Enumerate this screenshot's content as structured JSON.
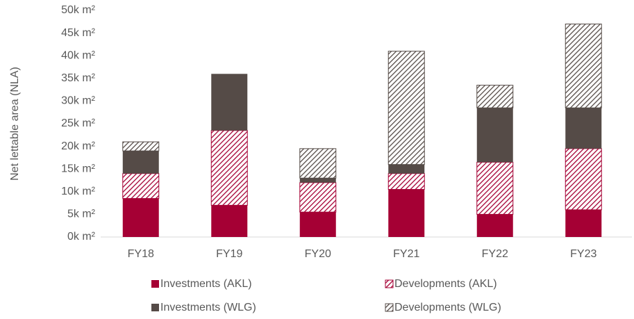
{
  "chart_data": {
    "type": "bar",
    "stacked": true,
    "y_label": "Net lettable area (NLA)",
    "categories": [
      "FY18",
      "FY19",
      "FY20",
      "FY21",
      "FY22",
      "FY23"
    ],
    "series": [
      {
        "name": "Investments (AKL)",
        "color": "#a50034",
        "hatch": false,
        "values": [
          8.5,
          7,
          5.5,
          10.5,
          5,
          6
        ]
      },
      {
        "name": "Developments (AKL)",
        "color": "#a50034",
        "hatch": true,
        "values": [
          5.5,
          16.5,
          6.5,
          3.5,
          11.5,
          13.5
        ]
      },
      {
        "name": "Investments (WLG)",
        "color": "#554b47",
        "hatch": false,
        "values": [
          5,
          12.5,
          1,
          2,
          12,
          9
        ]
      },
      {
        "name": "Developments (WLG)",
        "color": "#554b47",
        "hatch": true,
        "values": [
          2,
          0,
          6.5,
          25,
          5,
          18.5
        ]
      }
    ],
    "ylim": [
      0,
      50
    ],
    "yticks": [
      {
        "value": 0,
        "label": "0k m²"
      },
      {
        "value": 5,
        "label": "5k m²"
      },
      {
        "value": 10,
        "label": "10k m²"
      },
      {
        "value": 15,
        "label": "15k m²"
      },
      {
        "value": 20,
        "label": "20k m²"
      },
      {
        "value": 25,
        "label": "25k m²"
      },
      {
        "value": 30,
        "label": "30k m²"
      },
      {
        "value": 35,
        "label": "35k m²"
      },
      {
        "value": 40,
        "label": "40k m²"
      },
      {
        "value": 45,
        "label": "45k m²"
      },
      {
        "value": 50,
        "label": "50k m²"
      }
    ],
    "grid": false
  }
}
